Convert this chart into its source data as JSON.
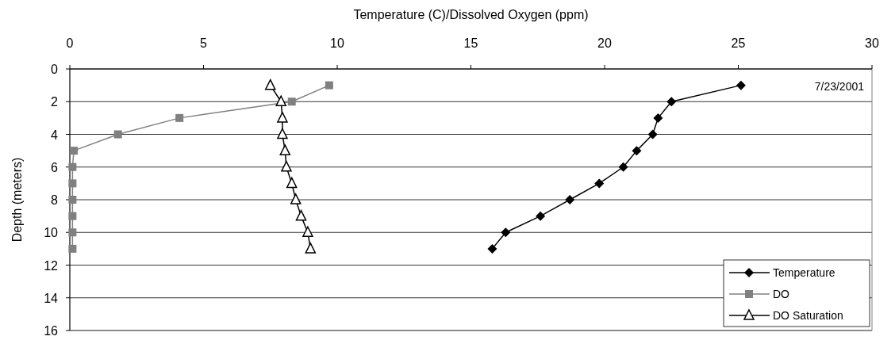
{
  "chart_data": {
    "type": "line",
    "xlabel": "Temperature (C)/Dissolved Oxygen (ppm)",
    "ylabel": "Depth (meters)",
    "xlim": [
      0,
      30
    ],
    "xticks": [
      0,
      5,
      10,
      15,
      20,
      25,
      30
    ],
    "ylim": [
      16,
      0
    ],
    "yticks": [
      0,
      2,
      4,
      6,
      8,
      10,
      12,
      14,
      16
    ],
    "grid": "y",
    "legend": "bottom right",
    "annotations": [
      "7/23/2001"
    ],
    "series": [
      {
        "name": "Temperature",
        "color": "#000000",
        "marker": "diamond",
        "x": [
          25.1,
          22.5,
          22.0,
          21.8,
          21.2,
          20.7,
          19.8,
          18.7,
          17.6,
          16.3,
          15.8
        ],
        "values": [
          1,
          2,
          3,
          4,
          5,
          6,
          7,
          8,
          9,
          10,
          11
        ]
      },
      {
        "name": "DO",
        "color": "#808080",
        "marker": "square",
        "x": [
          9.7,
          8.3,
          4.1,
          1.8,
          0.15,
          0.1,
          0.1,
          0.1,
          0.1,
          0.1,
          0.1
        ],
        "values": [
          1,
          2,
          3,
          4,
          5,
          6,
          7,
          8,
          9,
          10,
          11
        ]
      },
      {
        "name": "DO Saturation",
        "color": "#000000",
        "marker": "triangle",
        "x": [
          7.5,
          7.9,
          7.95,
          7.95,
          8.05,
          8.1,
          8.3,
          8.45,
          8.65,
          8.9,
          9.0
        ],
        "values": [
          1,
          2,
          3,
          4,
          5,
          6,
          7,
          8,
          9,
          10,
          11
        ]
      }
    ]
  }
}
